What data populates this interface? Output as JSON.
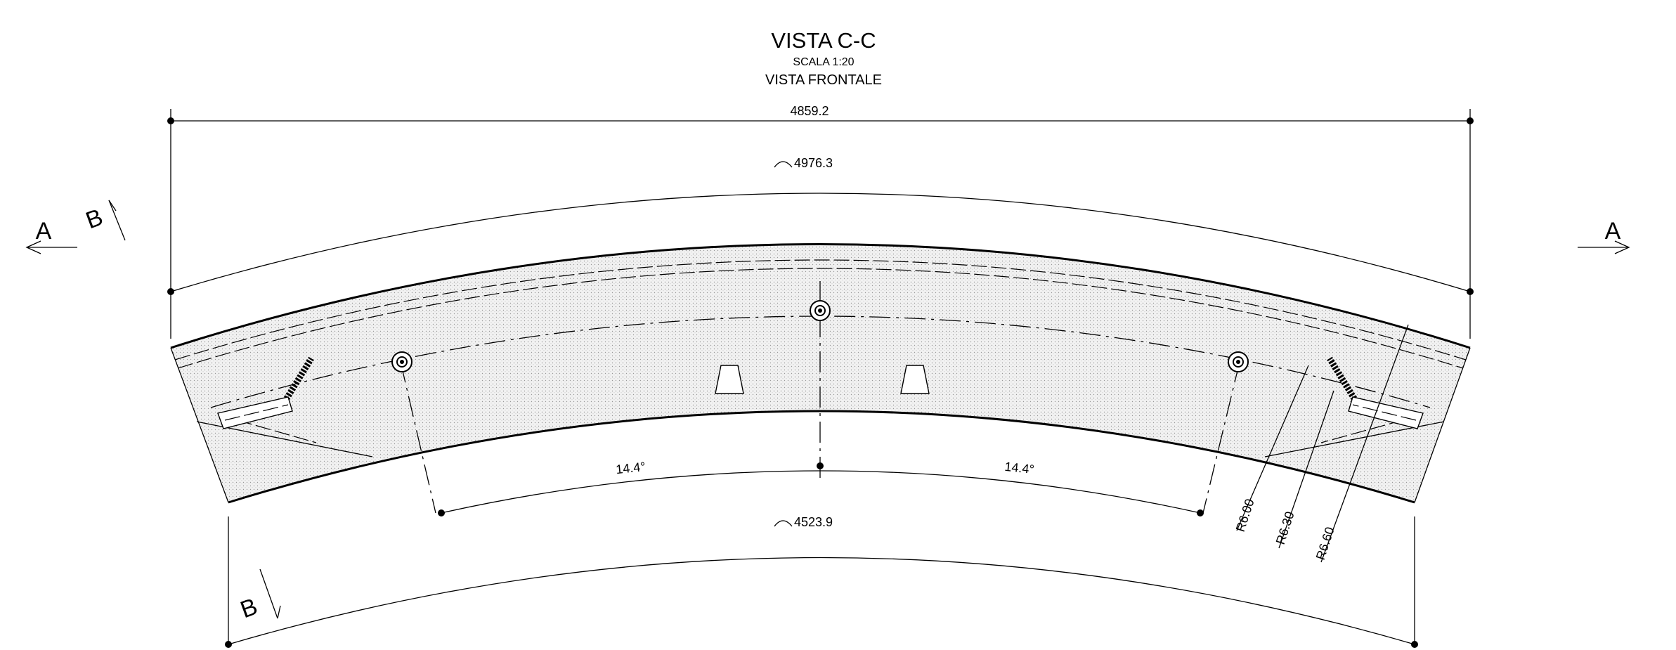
{
  "view": {
    "title": "VISTA C-C",
    "scale": "SCALA 1:20",
    "subtitle": "VISTA FRONTALE"
  },
  "dimensions": {
    "overall_width": "4859.2",
    "outer_arc": "4976.3",
    "inner_arc": "4523.9",
    "angle_left": "14.4°",
    "angle_right": "14.4°",
    "radius_1": "R6.00",
    "radius_2": "R6.30",
    "radius_3": "R6.60"
  },
  "section_marks": {
    "a_left": "A",
    "a_right": "A",
    "b_top": "B",
    "b_bottom": "B"
  }
}
